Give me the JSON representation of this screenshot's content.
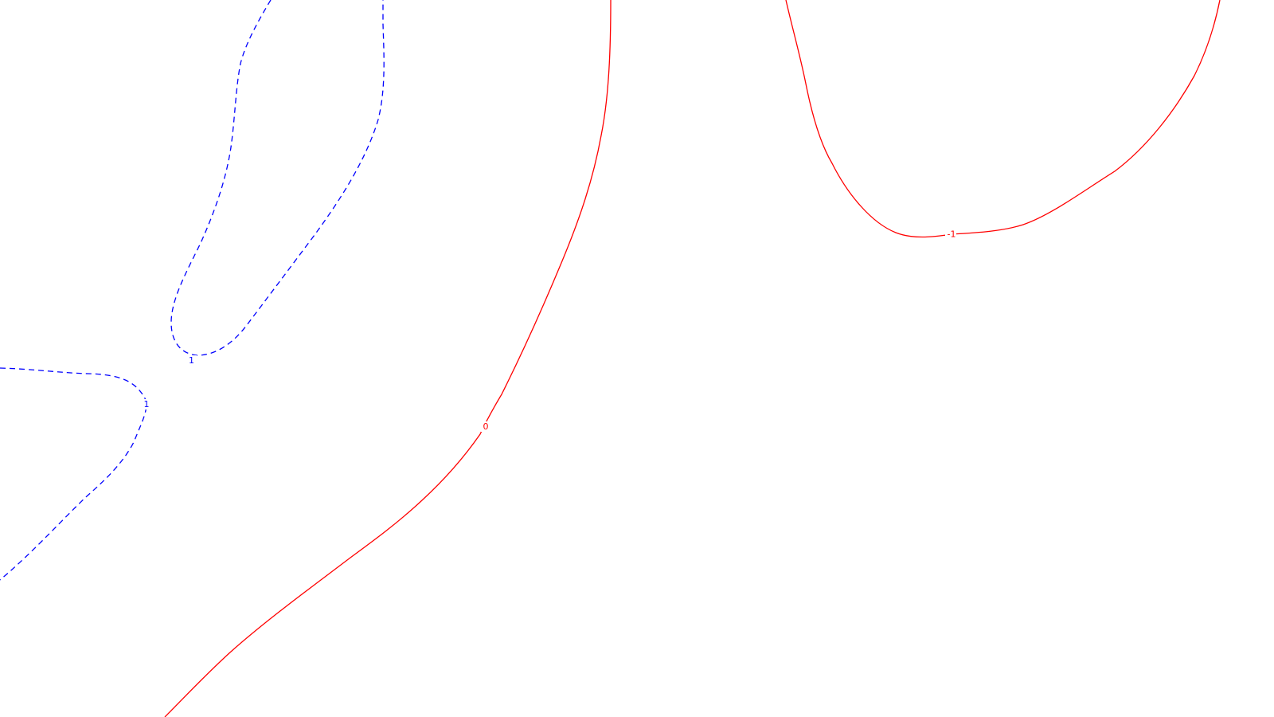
{
  "contours": [
    {
      "id": "loop-1-upper",
      "level": "1",
      "color": "#0000ff",
      "style": "dashed"
    },
    {
      "id": "loop-1-left",
      "level": "1",
      "color": "#0000ff",
      "style": "dashed"
    },
    {
      "id": "line-0",
      "level": "0",
      "color": "#ff0000",
      "style": "solid"
    },
    {
      "id": "loop-neg1",
      "level": "-1",
      "color": "#ff0000",
      "style": "solid"
    }
  ]
}
